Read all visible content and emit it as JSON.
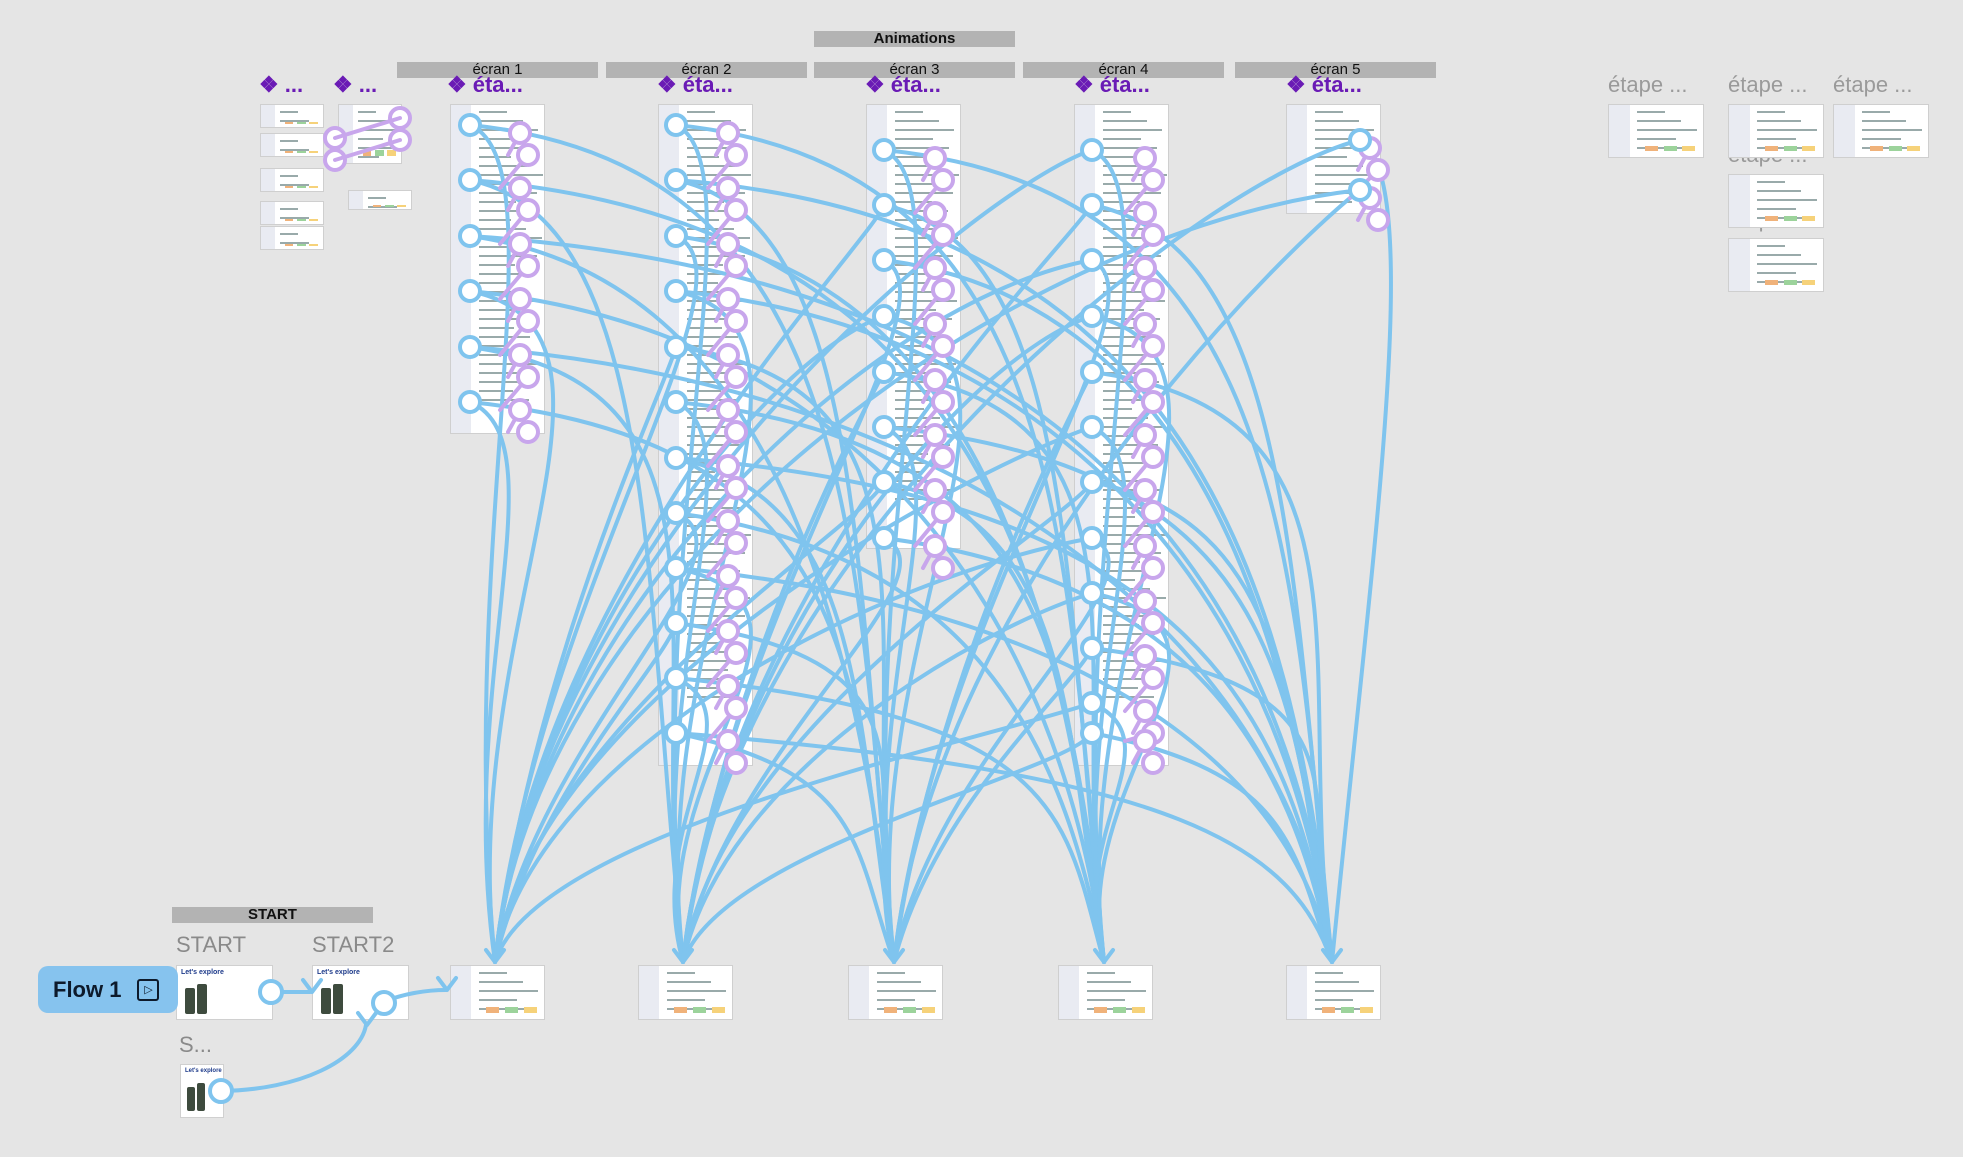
{
  "header": {
    "animations_label": "Animations"
  },
  "sections": [
    {
      "id": "ecran1",
      "label": "écran 1"
    },
    {
      "id": "ecran2",
      "label": "écran 2"
    },
    {
      "id": "ecran3",
      "label": "écran 3"
    },
    {
      "id": "ecran4",
      "label": "écran 4"
    },
    {
      "id": "ecran5",
      "label": "écran 5"
    }
  ],
  "frame_titles": {
    "small_a": "...",
    "small_b": "...",
    "screen1": "éta...",
    "screen2": "éta...",
    "screen3": "éta...",
    "screen4": "éta...",
    "screen5": "éta..."
  },
  "etape_titles": [
    "étape ...",
    "étape ...",
    "étape ...",
    "étape ...",
    "étape ..."
  ],
  "start_section": {
    "label": "START"
  },
  "start_frames": {
    "start": "START",
    "start2": "START2",
    "s": "S..."
  },
  "start_thumb_text": "Let's explore",
  "flow": {
    "label": "Flow 1",
    "icon": "play-icon"
  },
  "colors": {
    "background": "#e5e5e5",
    "connection": "#7fc4ee",
    "hotspot_purple": "#c8a6ec",
    "component_purple": "#6a1bb5",
    "flow_button": "#86c3ee"
  }
}
